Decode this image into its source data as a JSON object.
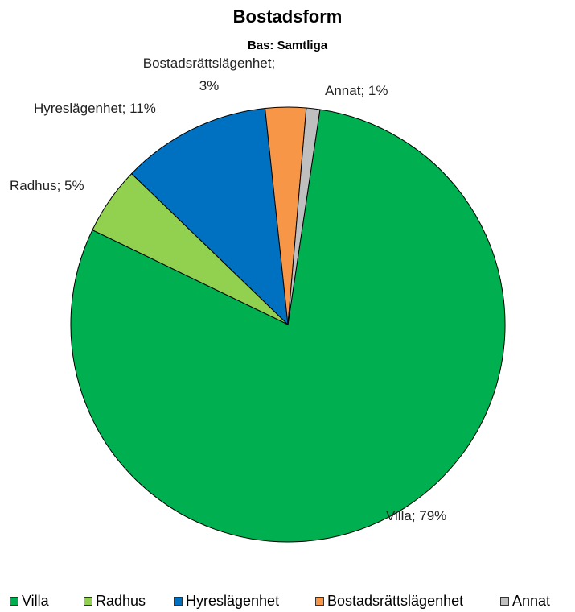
{
  "chart_data": {
    "type": "pie",
    "title": "Bostadsform",
    "subtitle": "Bas: Samtliga",
    "legend_position": "bottom",
    "slices": [
      {
        "name": "Villa",
        "value": 79,
        "label": "Villa; 79%",
        "color": "#00B050"
      },
      {
        "name": "Radhus",
        "value": 5,
        "label": "Radhus; 5%",
        "color": "#92D050"
      },
      {
        "name": "Hyreslägenhet",
        "value": 11,
        "label": "Hyreslägenhet; 11%",
        "color": "#0070C0"
      },
      {
        "name": "Bostadsrättslägenhet",
        "value": 3,
        "label_lines": [
          "Bostadsrättslägenhet;",
          "3%"
        ],
        "color": "#F79646"
      },
      {
        "name": "Annat",
        "value": 1,
        "label": "Annat; 1%",
        "color": "#BFBFBF"
      }
    ]
  }
}
